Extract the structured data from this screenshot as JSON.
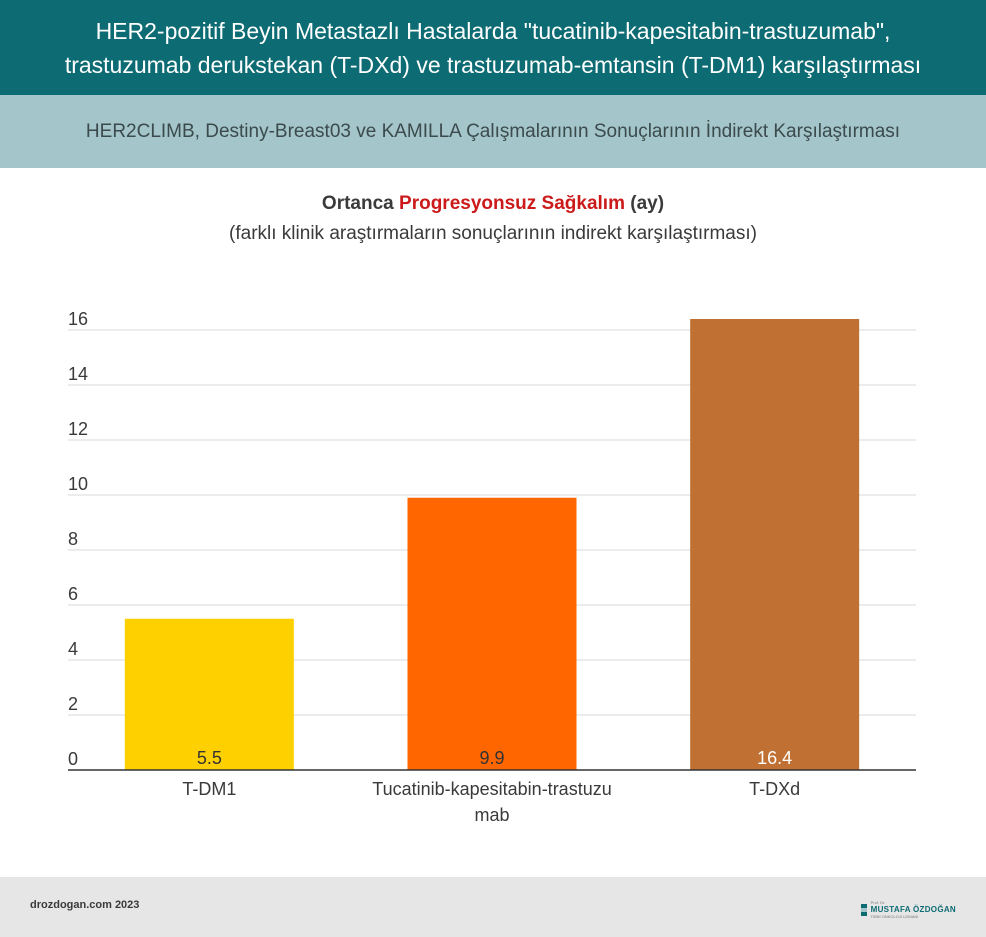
{
  "header": {
    "line1": "HER2-pozitif Beyin Metastazlı Hastalarda \"tucatinib-kapesitabin-trastuzumab\",",
    "line2": "trastuzumab derukstekan (T-DXd) ve trastuzumab-emtansin (T-DM1) karşılaştırması"
  },
  "subheader": "HER2CLIMB, Destiny-Breast03 ve KAMILLA Çalışmalarının Sonuçlarının İndirekt Karşılaştırması",
  "chart_data": {
    "type": "bar",
    "title_prefix": "Ortanca ",
    "title_accent": "Progresyonsuz Sağkalım",
    "title_suffix": " (ay)",
    "subtitle": "(farklı klinik araştırmaların sonuçlarının indirekt karşılaştırması)",
    "categories": [
      "T-DM1",
      "Tucatinib-kapesitabin-trastuzumab",
      "T-DXd"
    ],
    "category_lines": [
      [
        "T-DM1"
      ],
      [
        "Tucatinib-kapesitabin-trastuzu",
        "mab"
      ],
      [
        "T-DXd"
      ]
    ],
    "values": [
      5.5,
      9.9,
      16.4
    ],
    "value_labels": [
      "5.5",
      "9.9",
      "16.4"
    ],
    "bar_colors": [
      "#ffd000",
      "#ff6600",
      "#c07033"
    ],
    "value_label_colors": [
      "#333333",
      "#333333",
      "#ffffff"
    ],
    "ylim": [
      0,
      16
    ],
    "yticks": [
      0,
      2,
      4,
      6,
      8,
      10,
      12,
      14,
      16
    ],
    "ytick_labels": [
      "0",
      "2",
      "4",
      "6",
      "8",
      "10",
      "12",
      "14",
      "16"
    ],
    "grid": true,
    "xlabel": "",
    "ylabel": ""
  },
  "footer": {
    "site": "drozdogan.com 2023",
    "logo_small": "Prof. Dr.",
    "logo_name": "MUSTAFA ÖZDOĞAN",
    "logo_role": "TIBBİ ONKOLOJİ UZMANI"
  },
  "colors": {
    "header_bg": "#0d6b73",
    "subheader_bg": "#a4c5c9",
    "accent": "#cc1a1a"
  }
}
